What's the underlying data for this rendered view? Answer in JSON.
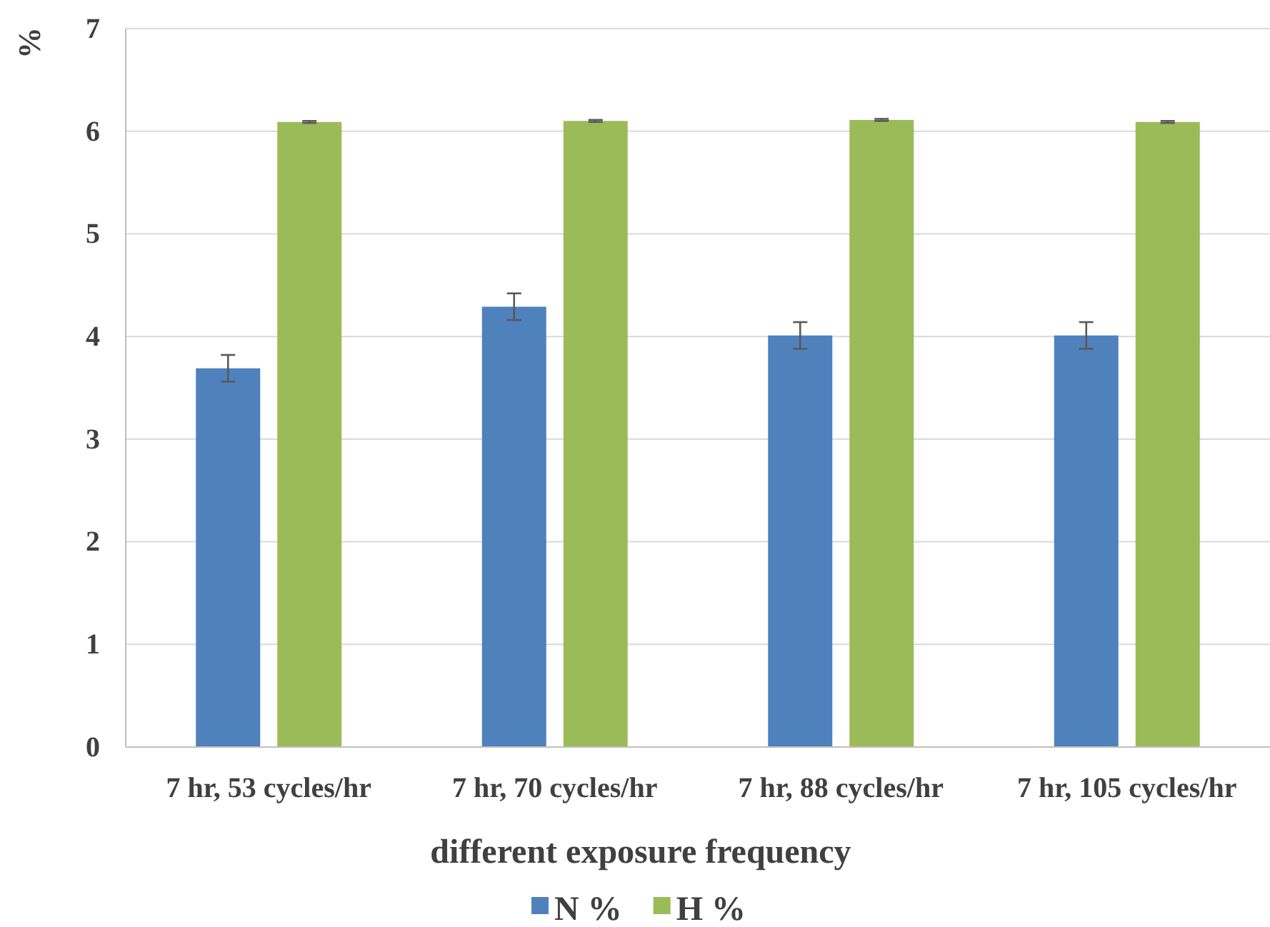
{
  "chart_data": {
    "type": "bar",
    "xlabel": "different exposure frequency",
    "ylabel": "%",
    "categories": [
      "7 hr, 53 cycles/hr",
      "7 hr, 70 cycles/hr",
      "7 hr, 88 cycles/hr",
      "7 hr, 105 cycles/hr"
    ],
    "series": [
      {
        "name": "N %",
        "color": "#4f81bd",
        "values": [
          3.69,
          4.29,
          4.01,
          4.01
        ],
        "errors": [
          0.13,
          0.13,
          0.13,
          0.13
        ]
      },
      {
        "name": "H %",
        "color": "#9bbb59",
        "values": [
          6.09,
          6.1,
          6.11,
          6.09
        ],
        "errors": [
          0.01,
          0.01,
          0.01,
          0.01
        ]
      }
    ],
    "ylim": [
      0,
      7
    ],
    "yticks": [
      0,
      1,
      2,
      3,
      4,
      5,
      6,
      7
    ],
    "grid": "y",
    "legend": "bottom"
  }
}
